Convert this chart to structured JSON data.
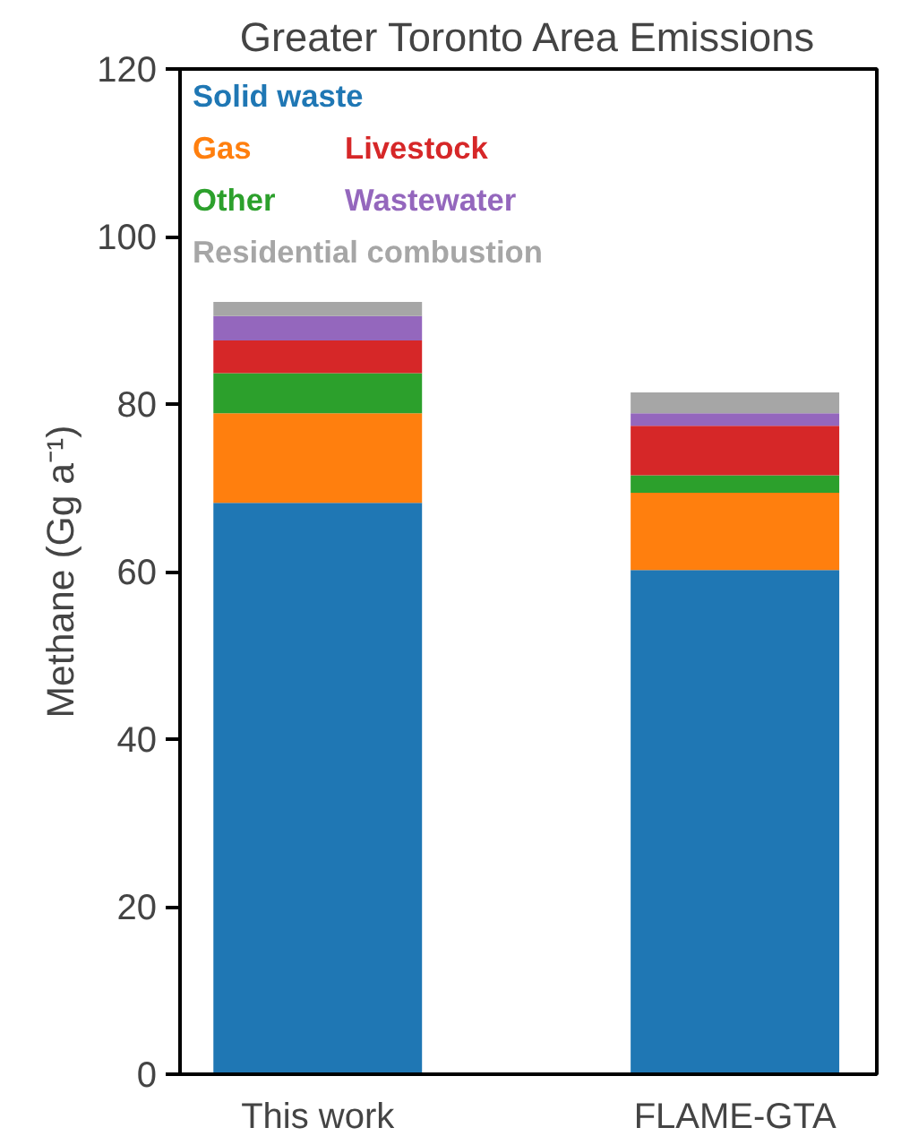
{
  "chart_data": {
    "type": "bar",
    "stacked": true,
    "title": "Greater Toronto Area Emissions",
    "ylabel": "Methane (Gg a⁻¹)",
    "categories": [
      "This work",
      "FLAME-GTA"
    ],
    "series": [
      {
        "name": "Solid waste",
        "color": "#1f77b4",
        "values": [
          68.2,
          60.2
        ]
      },
      {
        "name": "Gas",
        "color": "#ff7f0e",
        "values": [
          10.7,
          9.2
        ]
      },
      {
        "name": "Other",
        "color": "#2ca02c",
        "values": [
          4.8,
          2.1
        ]
      },
      {
        "name": "Livestock",
        "color": "#d62728",
        "values": [
          3.9,
          5.9
        ]
      },
      {
        "name": "Wastewater",
        "color": "#9467bd",
        "values": [
          2.9,
          1.5
        ]
      },
      {
        "name": "Residential combustion",
        "color": "#a6a6a6",
        "values": [
          1.7,
          2.5
        ]
      }
    ],
    "ylim": [
      0,
      120
    ],
    "yticks": [
      0,
      20,
      40,
      60,
      80,
      100,
      120
    ],
    "grid": false,
    "legend": "top left"
  }
}
